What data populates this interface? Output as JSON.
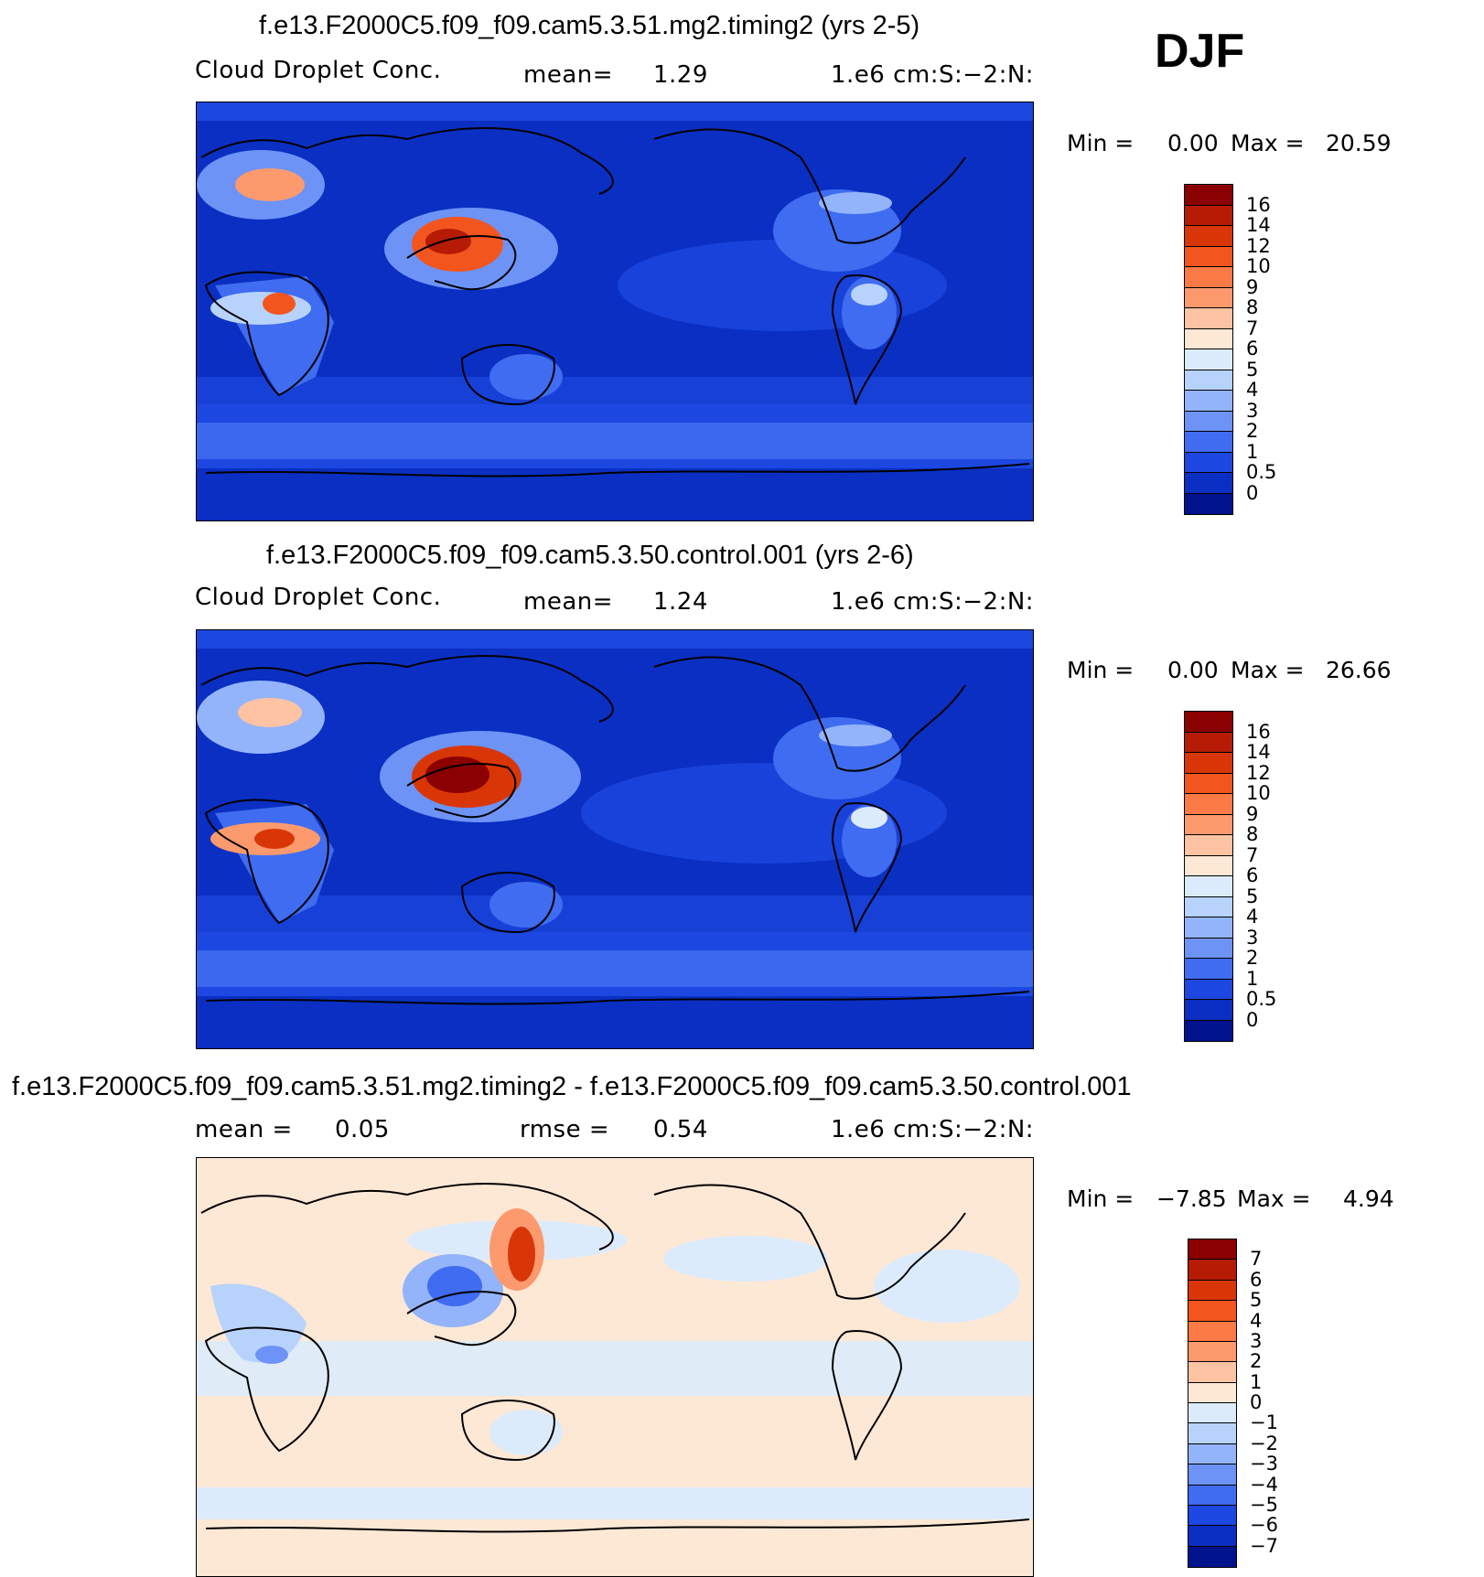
{
  "season": "DJF",
  "panels": [
    {
      "title": "f.e13.F2000C5.f09_f09.cam5.3.51.mg2.timing2 (yrs 2-5)",
      "field_label": "Cloud Droplet Conc.",
      "stat_label": "mean=",
      "stat_value": "1.29",
      "units": "1.e6 cm:S:−2:N:",
      "min_label": "Min =",
      "min_value": "0.00",
      "max_label": "Max =",
      "max_value": "20.59",
      "colorbar": {
        "labels": [
          "16",
          "14",
          "12",
          "10",
          "9",
          "8",
          "7",
          "6",
          "5",
          "4",
          "3",
          "2",
          "1",
          "0.5",
          "0"
        ],
        "colors": [
          "#8b0000",
          "#b51b05",
          "#d93608",
          "#f3551e",
          "#fb7a45",
          "#fc9a6e",
          "#fdc3a3",
          "#fde8d6",
          "#dcebfb",
          "#b8d3fb",
          "#93b4fa",
          "#6d93f6",
          "#3f6cf0",
          "#1c47e0",
          "#0a2fc2",
          "#00128c"
        ]
      }
    },
    {
      "title": "f.e13.F2000C5.f09_f09.cam5.3.50.control.001 (yrs 2-6)",
      "field_label": "Cloud Droplet Conc.",
      "stat_label": "mean=",
      "stat_value": "1.24",
      "units": "1.e6 cm:S:−2:N:",
      "min_label": "Min =",
      "min_value": "0.00",
      "max_label": "Max =",
      "max_value": "26.66",
      "colorbar": {
        "labels": [
          "16",
          "14",
          "12",
          "10",
          "9",
          "8",
          "7",
          "6",
          "5",
          "4",
          "3",
          "2",
          "1",
          "0.5",
          "0"
        ],
        "colors": [
          "#8b0000",
          "#b51b05",
          "#d93608",
          "#f3551e",
          "#fb7a45",
          "#fc9a6e",
          "#fdc3a3",
          "#fde8d6",
          "#dcebfb",
          "#b8d3fb",
          "#93b4fa",
          "#6d93f6",
          "#3f6cf0",
          "#1c47e0",
          "#0a2fc2",
          "#00128c"
        ]
      }
    },
    {
      "title": "f.e13.F2000C5.f09_f09.cam5.3.51.mg2.timing2 - f.e13.F2000C5.f09_f09.cam5.3.50.control.001",
      "field_label": "",
      "stat_label": "mean =",
      "stat_value": "0.05",
      "rmse_label": "rmse =",
      "rmse_value": "0.54",
      "units": "1.e6 cm:S:−2:N:",
      "min_label": "Min =",
      "min_value": "−7.85",
      "max_label": "Max =",
      "max_value": "4.94",
      "colorbar": {
        "labels": [
          "7",
          "6",
          "5",
          "4",
          "3",
          "2",
          "1",
          "0",
          "−1",
          "−2",
          "−3",
          "−4",
          "−5",
          "−6",
          "−7"
        ],
        "colors": [
          "#8b0000",
          "#b51b05",
          "#d93608",
          "#f3551e",
          "#fb7a45",
          "#fc9a6e",
          "#fdc3a3",
          "#fde8d6",
          "#dcebfb",
          "#b8d3fb",
          "#93b4fa",
          "#6d93f6",
          "#3f6cf0",
          "#1c47e0",
          "#0a2fc2",
          "#00128c"
        ]
      }
    }
  ]
}
